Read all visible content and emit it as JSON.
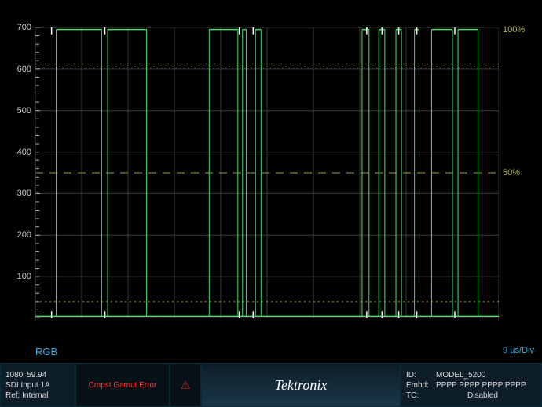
{
  "scope": {
    "type": "waveform",
    "background_color": "#000000",
    "grid_color": "#3a3a3a",
    "trace_color": "#40e060",
    "cursor_color": "#ffffff",
    "y_axis": {
      "min": 0,
      "max": 700,
      "ticks": [
        0,
        100,
        200,
        300,
        400,
        500,
        600,
        700
      ],
      "tick_labels": [
        "",
        "100",
        "200",
        "300",
        "400",
        "500",
        "600",
        "700"
      ],
      "label_color": "#cccccc",
      "minor_ticks_per_major": 5
    },
    "x_axis": {
      "divisions": 10
    },
    "percent_labels": {
      "100": "100%",
      "50": "50%",
      "color": "#b8b840"
    },
    "thresholds": {
      "upper_dotted_mv": 612,
      "mid_dashed_mv": 350,
      "lower_dotted_mv": 40,
      "color": "#a0a030"
    },
    "waveform_high_mv": 695,
    "waveform_low_mv": 5,
    "pulse_groups": [
      {
        "edges_x01": [
          0.045,
          0.143,
          0.156,
          0.24
        ]
      },
      {
        "edges_x01": [
          0.375,
          0.437,
          0.447,
          0.455,
          0.475,
          0.487
        ]
      },
      {
        "edges_x01": [
          0.705,
          0.72,
          0.741,
          0.754,
          0.778,
          0.79,
          0.818,
          0.828,
          0.855,
          0.9,
          0.912,
          0.955
        ]
      }
    ],
    "cursors_x01": [
      0.035,
      0.15,
      0.44,
      0.47,
      0.715,
      0.748,
      0.784,
      0.823,
      0.905
    ]
  },
  "labels": {
    "mode": "RGB",
    "time_per_div": "9 µs/Div"
  },
  "footer": {
    "format": "1080i 59.94",
    "input": "SDI Input 1A",
    "ref": "Ref: Internal",
    "error": "Cmpst Gamut Error",
    "alarm_icon": "⚠",
    "brand": "Tektronix",
    "id_label": "ID:",
    "id_value": "MODEL_5200",
    "embd_label": "Embd:",
    "embd_value": "PPPP PPPP PPPP PPPP",
    "tc_label": "TC:",
    "tc_value": "Disabled"
  }
}
